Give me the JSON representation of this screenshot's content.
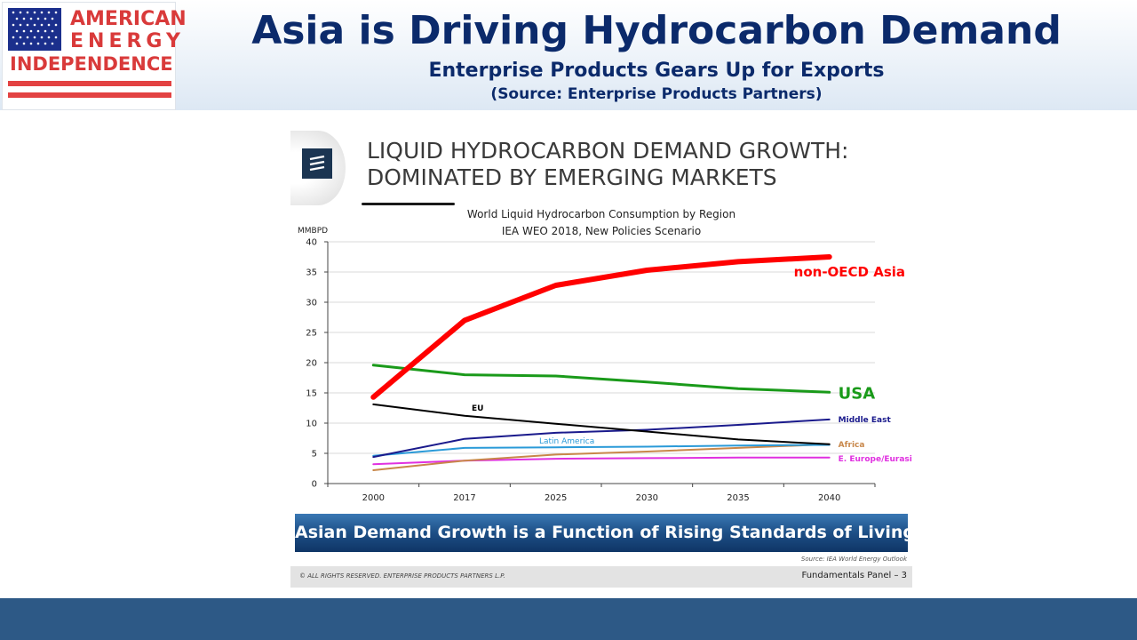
{
  "header": {
    "logo": {
      "line1": "AMERICAN",
      "line2": "ENERGY",
      "line3": "INDEPENDENCE"
    },
    "title": "Asia is Driving Hydrocarbon Demand",
    "subtitle": "Enterprise Products Gears Up for Exports",
    "source": "(Source: Enterprise Products Partners)"
  },
  "slide": {
    "title_line1": "LIQUID HYDROCARBON DEMAND GROWTH:",
    "title_line2": "DOMINATED BY EMERGING MARKETS",
    "banner": "Asian Demand Growth is a Function of Rising Standards of Living",
    "source_note": "Source: IEA World Energy Outlook",
    "footer_left": "© ALL RIGHTS RESERVED. ENTERPRISE PRODUCTS PARTNERS L.P.",
    "footer_right": "Fundamentals Panel – 3"
  },
  "colors": {
    "title": "#0b2a6b",
    "logo_red": "#d93a3a",
    "banner": "#1d4f86",
    "bottom_bar": "#2d5986"
  },
  "chart_data": {
    "type": "line",
    "title": "World Liquid Hydrocarbon Consumption by Region",
    "subtitle": "IEA WEO 2018, New Policies Scenario",
    "ylabel": "MMBPD",
    "xlabel": "",
    "categories": [
      "2000",
      "2017",
      "2025",
      "2030",
      "2035",
      "2040"
    ],
    "ylim": [
      0,
      40
    ],
    "yticks": [
      0,
      5,
      10,
      15,
      20,
      25,
      30,
      35,
      40
    ],
    "grid": true,
    "legend": "direct labels",
    "series": [
      {
        "name": "non-OECD Asia",
        "color": "#ff0000",
        "values": [
          14.3,
          27,
          32.8,
          35.3,
          36.7,
          37.5
        ]
      },
      {
        "name": "USA",
        "color": "#1a9a1a",
        "values": [
          19.6,
          18,
          17.8,
          16.8,
          15.7,
          15.1
        ]
      },
      {
        "name": "EU",
        "color": "#000000",
        "values": [
          13.1,
          11.2,
          9.9,
          8.6,
          7.3,
          6.5
        ]
      },
      {
        "name": "Middle East",
        "color": "#1a1a8c",
        "values": [
          4.4,
          7.4,
          8.4,
          8.9,
          9.7,
          10.6
        ]
      },
      {
        "name": "Latin America",
        "color": "#2a9ad8",
        "values": [
          4.6,
          5.9,
          6.0,
          6.1,
          6.3,
          6.4
        ]
      },
      {
        "name": "Africa",
        "color": "#c8874a",
        "values": [
          2.2,
          3.8,
          4.8,
          5.3,
          5.9,
          6.5
        ]
      },
      {
        "name": "E. Europe/Eurasia",
        "color": "#e030e0",
        "values": [
          3.2,
          3.8,
          4.1,
          4.2,
          4.3,
          4.3
        ]
      }
    ]
  }
}
